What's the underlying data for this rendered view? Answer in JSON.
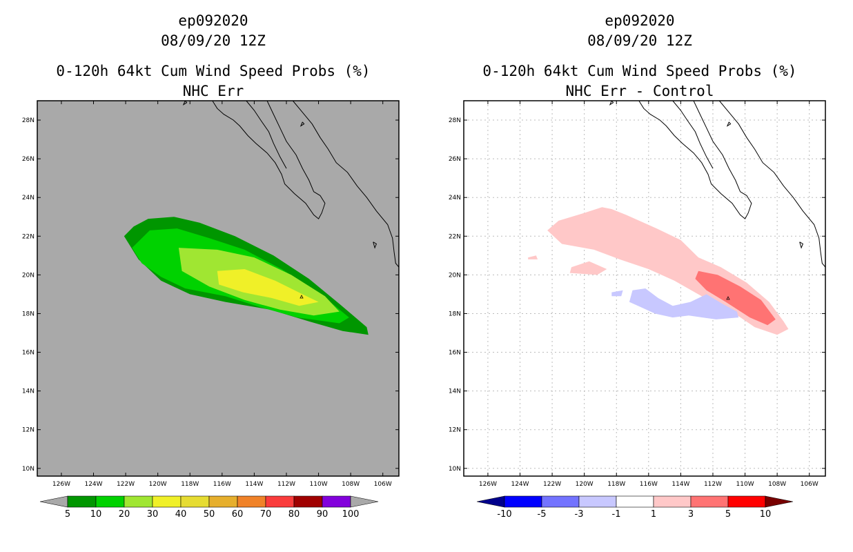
{
  "figure": {
    "left": {
      "title_lines": [
        "ep092020",
        "08/09/20 12Z",
        "0-120h 64kt Cum Wind Speed Probs (%)",
        "NHC Err"
      ]
    },
    "right": {
      "title_lines": [
        "ep092020",
        "08/09/20 12Z",
        "0-120h 64kt Cum Wind Speed Probs (%)",
        "NHC Err - Control"
      ]
    },
    "colors": {
      "land_bg": "#a9a9a9",
      "coast": "#000000",
      "grid": "#bbbbbb"
    }
  },
  "chart_data": [
    {
      "type": "heatmap",
      "name": "NHC Err",
      "xlabels": [
        "126W",
        "124W",
        "122W",
        "120W",
        "118W",
        "116W",
        "114W",
        "112W",
        "110W",
        "108W",
        "106W"
      ],
      "ylabels": [
        "28N",
        "26N",
        "24N",
        "22N",
        "20N",
        "18N",
        "16N",
        "14N",
        "12N",
        "10N"
      ],
      "x_range_deg": [
        -127.5,
        -105
      ],
      "y_range_deg": [
        9.6,
        29
      ],
      "colorbar": {
        "levels": [
          "5",
          "10",
          "20",
          "30",
          "40",
          "50",
          "60",
          "70",
          "80",
          "90",
          "100"
        ],
        "colors": [
          "#009600",
          "#00d200",
          "#a0e632",
          "#f0f028",
          "#e6dc32",
          "#e6af2d",
          "#f08228",
          "#fa3c3c",
          "#a00000",
          "#8200dc"
        ],
        "under_color": "#a9a9a9",
        "over_color": "#a9a9a9"
      },
      "contours": [
        {
          "level": "5",
          "color": "#009600",
          "points": [
            [
              -122.1,
              22.0
            ],
            [
              -121.5,
              22.5
            ],
            [
              -120.6,
              22.9
            ],
            [
              -119.0,
              23.0
            ],
            [
              -117.4,
              22.7
            ],
            [
              -115.2,
              22.0
            ],
            [
              -112.8,
              21.0
            ],
            [
              -110.6,
              19.8
            ],
            [
              -108.7,
              18.5
            ],
            [
              -107.0,
              17.3
            ],
            [
              -106.9,
              16.9
            ],
            [
              -108.5,
              17.1
            ],
            [
              -110.6,
              17.6
            ],
            [
              -113.0,
              18.2
            ],
            [
              -115.8,
              18.6
            ],
            [
              -118.0,
              19.0
            ],
            [
              -119.8,
              19.7
            ],
            [
              -121.2,
              20.8
            ]
          ]
        },
        {
          "level": "10",
          "color": "#00d200",
          "points": [
            [
              -121.6,
              21.4
            ],
            [
              -120.5,
              22.3
            ],
            [
              -118.8,
              22.4
            ],
            [
              -116.8,
              21.9
            ],
            [
              -114.6,
              21.3
            ],
            [
              -112.3,
              20.3
            ],
            [
              -110.0,
              19.1
            ],
            [
              -108.1,
              17.8
            ],
            [
              -108.7,
              17.5
            ],
            [
              -111.3,
              17.8
            ],
            [
              -113.5,
              18.3
            ],
            [
              -115.8,
              18.9
            ],
            [
              -118.3,
              19.3
            ],
            [
              -119.8,
              19.9
            ],
            [
              -121.0,
              20.6
            ]
          ]
        },
        {
          "level": "20",
          "color": "#a0e632",
          "points": [
            [
              -118.7,
              21.4
            ],
            [
              -116.3,
              21.3
            ],
            [
              -114.0,
              20.9
            ],
            [
              -111.7,
              20.0
            ],
            [
              -109.6,
              18.9
            ],
            [
              -108.7,
              18.1
            ],
            [
              -110.3,
              17.9
            ],
            [
              -112.4,
              18.2
            ],
            [
              -114.6,
              18.7
            ],
            [
              -116.8,
              19.4
            ],
            [
              -118.5,
              20.2
            ]
          ]
        },
        {
          "level": "30",
          "color": "#f0f028",
          "points": [
            [
              -116.3,
              20.2
            ],
            [
              -114.6,
              20.3
            ],
            [
              -112.7,
              19.7
            ],
            [
              -111.0,
              19.0
            ],
            [
              -110.0,
              18.6
            ],
            [
              -111.2,
              18.4
            ],
            [
              -112.9,
              18.8
            ],
            [
              -114.7,
              19.1
            ],
            [
              -116.2,
              19.5
            ]
          ]
        }
      ]
    },
    {
      "type": "heatmap",
      "name": "NHC Err - Control",
      "xlabels": [
        "126W",
        "124W",
        "122W",
        "120W",
        "118W",
        "116W",
        "114W",
        "112W",
        "110W",
        "108W",
        "106W"
      ],
      "ylabels": [
        "28N",
        "26N",
        "24N",
        "22N",
        "20N",
        "18N",
        "16N",
        "14N",
        "12N",
        "10N"
      ],
      "x_range_deg": [
        -127.5,
        -105
      ],
      "y_range_deg": [
        9.6,
        29
      ],
      "colorbar": {
        "levels": [
          "-10",
          "-5",
          "-3",
          "-1",
          "1",
          "3",
          "5",
          "10"
        ],
        "colors": [
          "#0000ff",
          "#7373ff",
          "#c8c8ff",
          "#ffffff",
          "#ffc8c8",
          "#ff7373",
          "#ff0000"
        ],
        "under_color": "#00008c",
        "over_color": "#780000"
      },
      "contours": [
        {
          "level": "1",
          "color": "#ffc8c8",
          "points": [
            [
              -122.3,
              22.3
            ],
            [
              -121.6,
              22.8
            ],
            [
              -120.0,
              23.2
            ],
            [
              -118.9,
              23.5
            ],
            [
              -118.3,
              23.4
            ],
            [
              -117.4,
              23.1
            ],
            [
              -115.5,
              22.4
            ],
            [
              -114.0,
              21.8
            ],
            [
              -112.9,
              20.9
            ],
            [
              -111.5,
              20.4
            ],
            [
              -109.9,
              19.6
            ],
            [
              -108.5,
              18.6
            ],
            [
              -107.6,
              17.6
            ],
            [
              -107.3,
              17.2
            ],
            [
              -108.0,
              16.9
            ],
            [
              -109.4,
              17.3
            ],
            [
              -111.0,
              18.2
            ],
            [
              -112.7,
              18.9
            ],
            [
              -114.4,
              19.7
            ],
            [
              -116.0,
              20.3
            ],
            [
              -117.8,
              20.8
            ],
            [
              -119.4,
              21.3
            ],
            [
              -121.4,
              21.6
            ]
          ]
        },
        {
          "level": "1",
          "color": "#ffc8c8",
          "points": [
            [
              -120.8,
              20.4
            ],
            [
              -119.7,
              20.7
            ],
            [
              -118.6,
              20.3
            ],
            [
              -119.2,
              20.0
            ],
            [
              -120.9,
              20.1
            ]
          ]
        },
        {
          "level": "1",
          "color": "#ffc8c8",
          "points": [
            [
              -123.5,
              20.9
            ],
            [
              -123.0,
              21.0
            ],
            [
              -122.9,
              20.8
            ],
            [
              -123.5,
              20.8
            ]
          ]
        },
        {
          "level": "3",
          "color": "#ff7373",
          "points": [
            [
              -112.9,
              20.2
            ],
            [
              -111.7,
              20.0
            ],
            [
              -110.3,
              19.4
            ],
            [
              -109.0,
              18.7
            ],
            [
              -108.1,
              17.7
            ],
            [
              -108.6,
              17.4
            ],
            [
              -109.7,
              17.8
            ],
            [
              -111.2,
              18.6
            ],
            [
              -112.4,
              19.2
            ],
            [
              -113.1,
              19.8
            ]
          ]
        },
        {
          "level": "-1",
          "color": "#c8c8ff",
          "points": [
            [
              -117.0,
              19.2
            ],
            [
              -116.2,
              19.3
            ],
            [
              -115.4,
              18.8
            ],
            [
              -114.5,
              18.4
            ],
            [
              -113.4,
              18.6
            ],
            [
              -112.4,
              19.0
            ],
            [
              -111.4,
              18.5
            ],
            [
              -110.5,
              18.1
            ],
            [
              -110.4,
              17.8
            ],
            [
              -111.8,
              17.7
            ],
            [
              -113.5,
              17.9
            ],
            [
              -114.5,
              17.8
            ],
            [
              -115.6,
              18.0
            ],
            [
              -116.4,
              18.3
            ],
            [
              -117.2,
              18.6
            ]
          ]
        },
        {
          "level": "-1",
          "color": "#c8c8ff",
          "points": [
            [
              -118.3,
              19.1
            ],
            [
              -117.6,
              19.2
            ],
            [
              -117.7,
              18.9
            ],
            [
              -118.3,
              18.9
            ]
          ]
        }
      ]
    }
  ]
}
